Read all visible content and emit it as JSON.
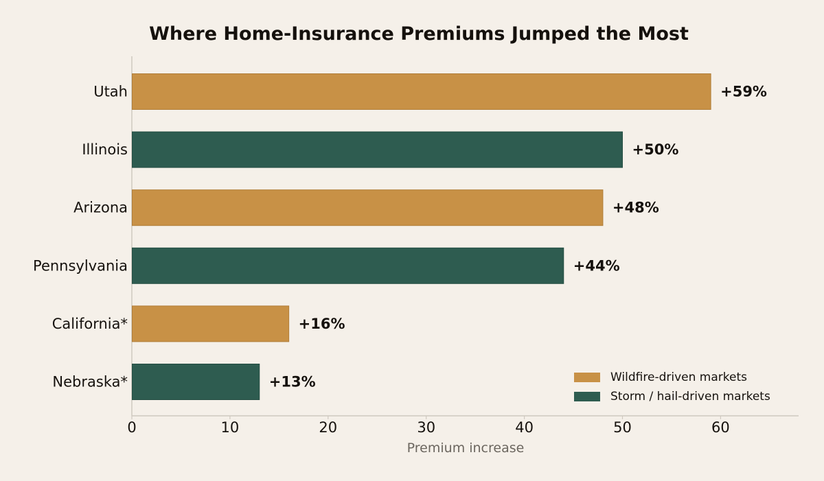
{
  "chart_data": {
    "type": "bar",
    "orientation": "horizontal",
    "title": "Where Home-Insurance Premiums Jumped the Most",
    "xlabel": "Premium increase",
    "ylabel": "",
    "xlim": [
      0,
      68
    ],
    "xticks": [
      0,
      10,
      20,
      30,
      40,
      50,
      60
    ],
    "grid": false,
    "legend_position": "bottom-right",
    "categories": [
      "Utah",
      "Illinois",
      "Arizona",
      "Pennsylvania",
      "California*",
      "Nebraska*"
    ],
    "values": [
      59,
      50,
      48,
      44,
      16,
      13
    ],
    "value_labels": [
      "+59%",
      "+50%",
      "+48%",
      "+44%",
      "+16%",
      "+13%"
    ],
    "groups": [
      "wildfire",
      "storm",
      "wildfire",
      "storm",
      "wildfire",
      "storm"
    ],
    "legend": [
      {
        "key": "wildfire",
        "label": "Wildfire-driven markets",
        "color": "#c89146"
      },
      {
        "key": "storm",
        "label": "Storm / hail-driven markets",
        "color": "#2e5c50"
      }
    ]
  }
}
